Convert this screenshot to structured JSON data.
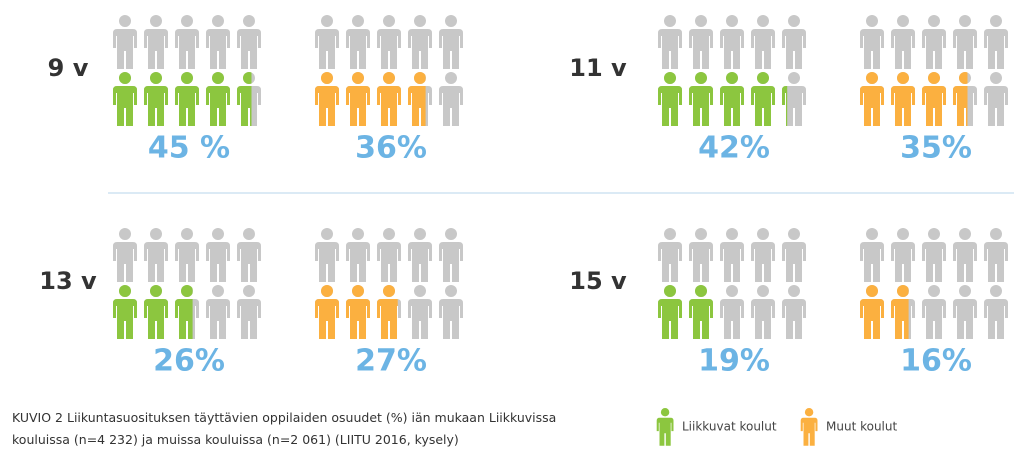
{
  "chart_data": {
    "type": "pictogram",
    "categories": [
      "9 v",
      "11 v",
      "13 v",
      "15 v"
    ],
    "series": [
      {
        "name": "Liikkuvat koulut",
        "color": "#8cc63f",
        "values": [
          45,
          42,
          26,
          19
        ],
        "value_labels": [
          "45 %",
          "42%",
          "26%",
          "19%"
        ]
      },
      {
        "name": "Muut koulut",
        "color": "#fbb040",
        "values": [
          36,
          35,
          27,
          16
        ],
        "value_labels": [
          "36%",
          "35%",
          "27%",
          "16%"
        ]
      }
    ],
    "caption": "KUVIO 2 Liikuntasuosituksen täyttävien oppilaiden osuudet (%) iän mukaan Liikkuvissa kouluissa (n=4 232) ja muissa kouluissa (n=2 061) (LIITU 2016, kysely)"
  }
}
